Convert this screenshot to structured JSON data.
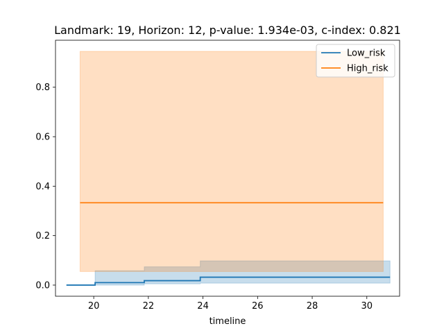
{
  "chart_data": {
    "type": "line",
    "title": "Landmark: 19, Horizon: 12, p-value: 1.934e-03, c-index: 0.821",
    "xlabel": "timeline",
    "ylabel": "",
    "xlim": [
      18.6,
      31.2
    ],
    "ylim": [
      -0.045,
      0.99
    ],
    "xticks": [
      20,
      22,
      24,
      26,
      28,
      30
    ],
    "yticks": [
      0.0,
      0.2,
      0.4,
      0.6,
      0.8
    ],
    "grid": false,
    "legend_position": "top-right",
    "series": [
      {
        "name": "Low_risk",
        "color": "#1f77b4",
        "step": true,
        "x": [
          19.0,
          20.05,
          21.85,
          23.9,
          30.85
        ],
        "y": [
          0.0,
          0.01,
          0.018,
          0.032,
          0.032
        ],
        "ci_lower": [
          0.0,
          0.0,
          0.005,
          0.008,
          0.008
        ],
        "ci_upper": [
          0.0,
          0.058,
          0.074,
          0.098,
          0.098
        ]
      },
      {
        "name": "High_risk",
        "color": "#ff7f0e",
        "step": true,
        "x": [
          19.5,
          30.6
        ],
        "y": [
          0.333,
          0.333
        ],
        "ci_lower": [
          0.055,
          0.055
        ],
        "ci_upper": [
          0.945,
          0.945
        ]
      }
    ]
  }
}
